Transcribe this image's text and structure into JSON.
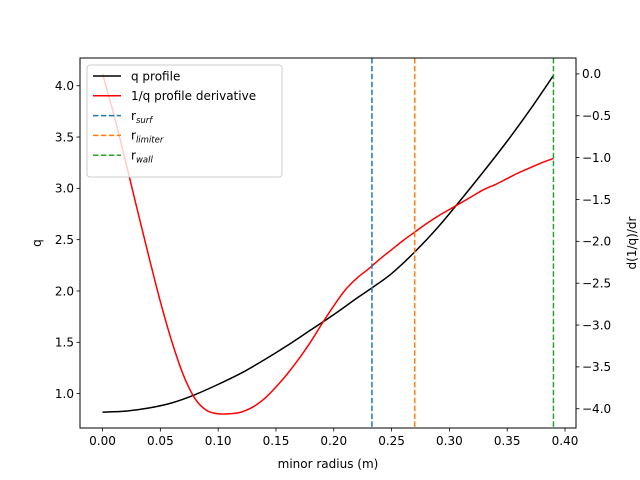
{
  "chart_data": {
    "type": "line",
    "xlabel": "minor radius (m)",
    "ylabel_left": "q",
    "ylabel_right": "d(1/q)/dr",
    "xlim": [
      -0.0195,
      0.4095
    ],
    "ylim_left": [
      0.665,
      4.27
    ],
    "ylim_right": [
      -4.23,
      0.19
    ],
    "grid": false,
    "legend_placement": "top-left",
    "x_ticks": [
      0.0,
      0.05,
      0.1,
      0.15,
      0.2,
      0.25,
      0.3,
      0.35,
      0.4
    ],
    "x_tick_labels": [
      "0.00",
      "0.05",
      "0.10",
      "0.15",
      "0.20",
      "0.25",
      "0.30",
      "0.35",
      "0.40"
    ],
    "y_left_ticks": [
      1.0,
      1.5,
      2.0,
      2.5,
      3.0,
      3.5,
      4.0
    ],
    "y_left_tick_labels": [
      "1.0",
      "1.5",
      "2.0",
      "2.5",
      "3.0",
      "3.5",
      "4.0"
    ],
    "y_right_ticks": [
      0.0,
      -0.5,
      -1.0,
      -1.5,
      -2.0,
      -2.5,
      -3.0,
      -3.5,
      -4.0
    ],
    "y_right_tick_labels": [
      "0.0",
      "−0.5",
      "−1.0",
      "−1.5",
      "−2.0",
      "−2.5",
      "−3.0",
      "−3.5",
      "−4.0"
    ],
    "series": [
      {
        "name": "q profile",
        "axis": "left",
        "color": "#000000",
        "x": [
          0.0,
          0.02,
          0.04,
          0.06,
          0.08,
          0.1,
          0.12,
          0.14,
          0.16,
          0.18,
          0.2,
          0.22,
          0.233,
          0.25,
          0.27,
          0.29,
          0.31,
          0.33,
          0.35,
          0.37,
          0.39
        ],
        "y": [
          0.82,
          0.83,
          0.86,
          0.91,
          0.99,
          1.09,
          1.2,
          1.33,
          1.47,
          1.62,
          1.77,
          1.93,
          2.03,
          2.17,
          2.38,
          2.62,
          2.89,
          3.17,
          3.46,
          3.77,
          4.1
        ]
      },
      {
        "name": "1/q profile derivative",
        "axis": "right",
        "color": "#ff0000",
        "x": [
          0.0,
          0.01,
          0.02,
          0.03,
          0.04,
          0.05,
          0.06,
          0.07,
          0.08,
          0.09,
          0.1,
          0.11,
          0.12,
          0.13,
          0.14,
          0.15,
          0.16,
          0.17,
          0.18,
          0.19,
          0.2,
          0.21,
          0.22,
          0.23,
          0.24,
          0.25,
          0.26,
          0.27,
          0.28,
          0.29,
          0.3,
          0.31,
          0.32,
          0.33,
          0.34,
          0.35,
          0.36,
          0.37,
          0.38,
          0.39
        ],
        "y": [
          0.0,
          -0.5,
          -1.05,
          -1.62,
          -2.18,
          -2.72,
          -3.2,
          -3.6,
          -3.88,
          -4.02,
          -4.06,
          -4.06,
          -4.04,
          -3.98,
          -3.88,
          -3.74,
          -3.58,
          -3.4,
          -3.2,
          -2.98,
          -2.77,
          -2.58,
          -2.44,
          -2.33,
          -2.21,
          -2.1,
          -1.99,
          -1.89,
          -1.79,
          -1.7,
          -1.62,
          -1.54,
          -1.46,
          -1.38,
          -1.32,
          -1.25,
          -1.18,
          -1.12,
          -1.06,
          -1.01
        ]
      }
    ],
    "vlines": [
      {
        "label_base": "r",
        "label_sub": "surf",
        "x": 0.233,
        "color": "#1f77b4"
      },
      {
        "label_base": "r",
        "label_sub": "limiter",
        "x": 0.27,
        "color": "#ff7f0e"
      },
      {
        "label_base": "r",
        "label_sub": "wall",
        "x": 0.39,
        "color": "#2ca02c"
      }
    ],
    "colors": {
      "right_axis_label": "#ff0000"
    }
  }
}
